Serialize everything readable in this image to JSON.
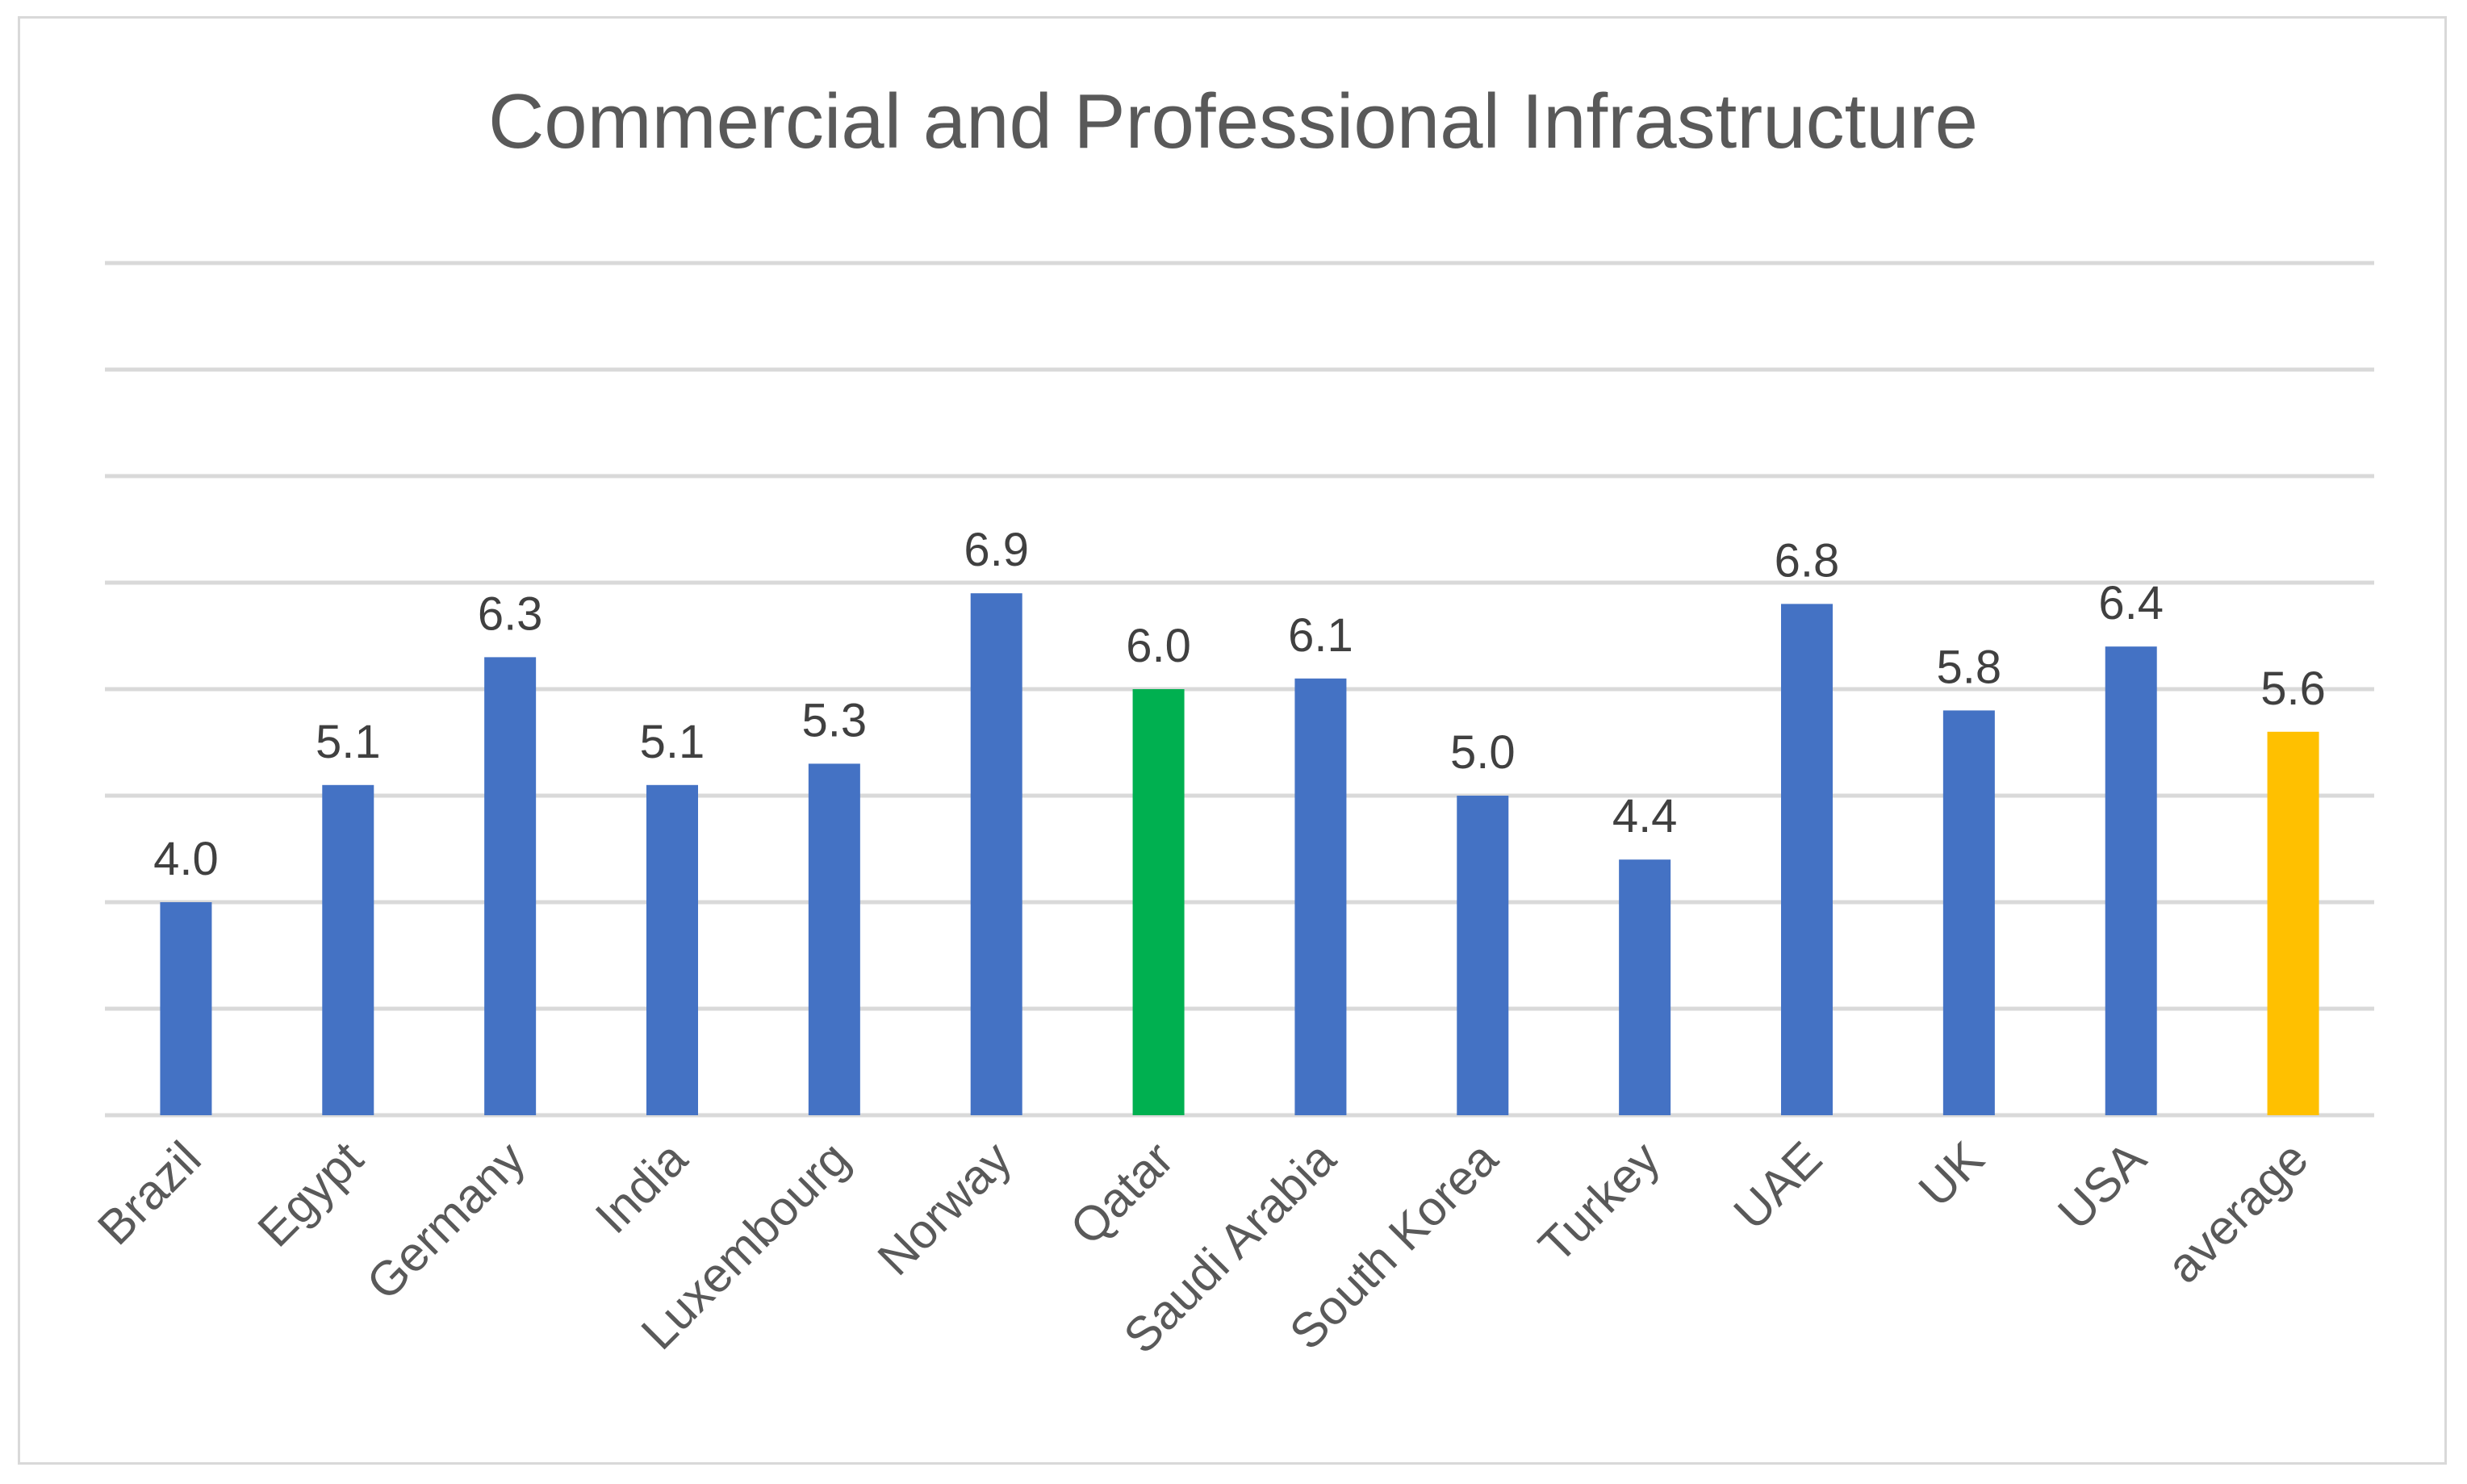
{
  "chart_data": {
    "type": "bar",
    "title": "Commercial and Professional Infrastructure",
    "xlabel": "",
    "ylabel": "",
    "ylim": [
      2,
      10
    ],
    "grid": true,
    "legend": "none",
    "categories": [
      "Brazil",
      "Egypt",
      "Germany",
      "India",
      "Luxembourg",
      "Norway",
      "Qatar",
      "Saudi Arabia",
      "South Korea",
      "Turkey",
      "UAE",
      "UK",
      "USA",
      "average"
    ],
    "values": [
      4.0,
      5.1,
      6.3,
      5.1,
      5.3,
      6.9,
      6.0,
      6.1,
      5.0,
      4.4,
      6.8,
      5.8,
      6.4,
      5.6
    ],
    "value_labels": [
      "4.0",
      "5.1",
      "6.3",
      "5.1",
      "5.3",
      "6.9",
      "6.0",
      "6.1",
      "5.0",
      "4.4",
      "6.8",
      "5.8",
      "6.4",
      "5.6"
    ],
    "bar_colors": [
      "#4472c4",
      "#4472c4",
      "#4472c4",
      "#4472c4",
      "#4472c4",
      "#4472c4",
      "#00b050",
      "#4472c4",
      "#4472c4",
      "#4472c4",
      "#4472c4",
      "#4472c4",
      "#4472c4",
      "#ffc000"
    ]
  }
}
